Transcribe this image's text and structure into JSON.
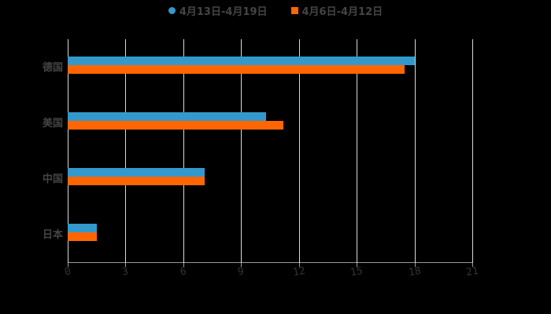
{
  "legend": [
    {
      "label": "4月13日-4月19日",
      "color": "#3399cc",
      "shape": "circle"
    },
    {
      "label": "4月6日-4月12日",
      "color": "#ff6600",
      "shape": "square"
    }
  ],
  "chart_data": {
    "type": "bar",
    "orientation": "horizontal",
    "title": "",
    "xlabel": "",
    "ylabel": "",
    "categories": [
      "德国",
      "美国",
      "中国",
      "日本"
    ],
    "series": [
      {
        "name": "4月13日-4月19日",
        "color": "#3399cc",
        "values": [
          18.0,
          10.3,
          7.1,
          1.5
        ]
      },
      {
        "name": "4月6日-4月12日",
        "color": "#ff6600",
        "values": [
          17.5,
          11.2,
          7.1,
          1.5
        ]
      }
    ],
    "xlim": [
      0,
      21
    ],
    "xticks": [
      "0",
      "3",
      "6",
      "9",
      "12",
      "15",
      "18",
      "21"
    ],
    "grid": true,
    "legend_position": "top"
  }
}
